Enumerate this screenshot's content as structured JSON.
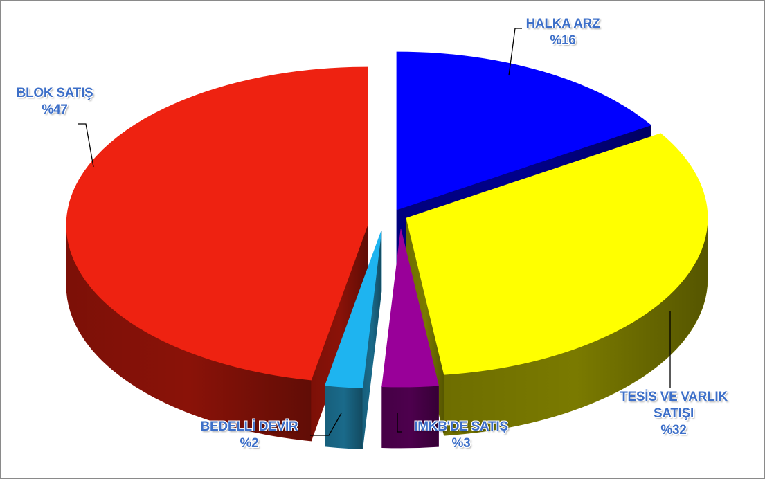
{
  "chart_data": {
    "type": "pie",
    "title": "",
    "slices": [
      {
        "label": "HALKA ARZ",
        "value": 16,
        "value_text": "%16",
        "color": "#0000ff",
        "side_color": "#00008b"
      },
      {
        "label": "TESİS VE VARLIK SATIŞI",
        "label_lines": [
          "TESİS VE VARLIK",
          "SATIŞI"
        ],
        "value": 32,
        "value_text": "%32",
        "color": "#ffff00",
        "side_color": "#7a7a00"
      },
      {
        "label": "IMKB'DE SATIŞ",
        "value": 3,
        "value_text": "%3",
        "color": "#990099",
        "side_color": "#4d004d"
      },
      {
        "label": "BEDELLİ DEVİR",
        "value": 2,
        "value_text": "%2",
        "color": "#1eb4f0",
        "side_color": "#1a6a8a"
      },
      {
        "label": "BLOK SATIŞ",
        "value": 47,
        "value_text": "%47",
        "color": "#ee2211",
        "side_color": "#8a1208"
      }
    ],
    "label_color": "#3d6fc8",
    "legend": "none",
    "style": "3d-exploded"
  }
}
